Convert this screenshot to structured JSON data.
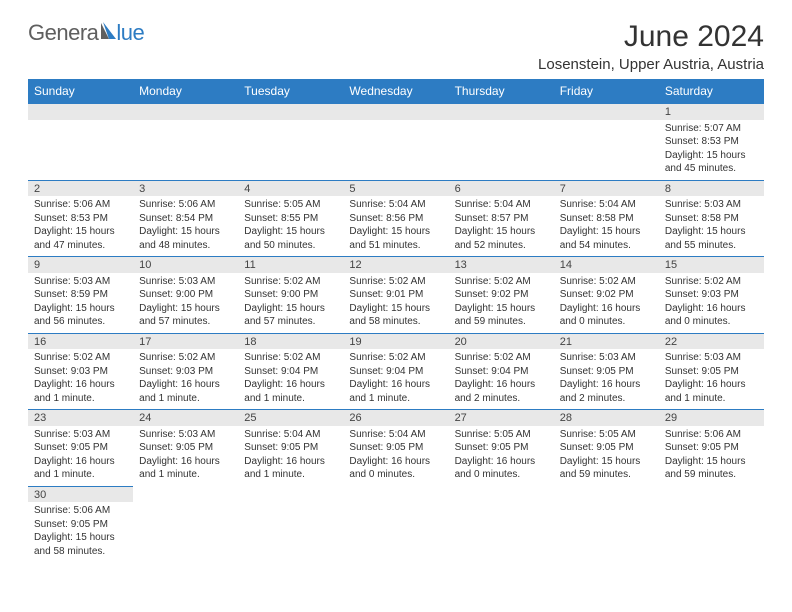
{
  "logo": {
    "text1": "Genera",
    "text2": "lue"
  },
  "title": "June 2024",
  "location": "Losenstein, Upper Austria, Austria",
  "colors": {
    "header_bg": "#2d7cc3",
    "header_fg": "#ffffff",
    "daynum_bg": "#e8e8e8",
    "text": "#333333",
    "divider": "#2d7cc3"
  },
  "day_headers": [
    "Sunday",
    "Monday",
    "Tuesday",
    "Wednesday",
    "Thursday",
    "Friday",
    "Saturday"
  ],
  "weeks": [
    [
      null,
      null,
      null,
      null,
      null,
      null,
      {
        "n": "1",
        "sunrise": "Sunrise: 5:07 AM",
        "sunset": "Sunset: 8:53 PM",
        "daylight": "Daylight: 15 hours and 45 minutes."
      }
    ],
    [
      {
        "n": "2",
        "sunrise": "Sunrise: 5:06 AM",
        "sunset": "Sunset: 8:53 PM",
        "daylight": "Daylight: 15 hours and 47 minutes."
      },
      {
        "n": "3",
        "sunrise": "Sunrise: 5:06 AM",
        "sunset": "Sunset: 8:54 PM",
        "daylight": "Daylight: 15 hours and 48 minutes."
      },
      {
        "n": "4",
        "sunrise": "Sunrise: 5:05 AM",
        "sunset": "Sunset: 8:55 PM",
        "daylight": "Daylight: 15 hours and 50 minutes."
      },
      {
        "n": "5",
        "sunrise": "Sunrise: 5:04 AM",
        "sunset": "Sunset: 8:56 PM",
        "daylight": "Daylight: 15 hours and 51 minutes."
      },
      {
        "n": "6",
        "sunrise": "Sunrise: 5:04 AM",
        "sunset": "Sunset: 8:57 PM",
        "daylight": "Daylight: 15 hours and 52 minutes."
      },
      {
        "n": "7",
        "sunrise": "Sunrise: 5:04 AM",
        "sunset": "Sunset: 8:58 PM",
        "daylight": "Daylight: 15 hours and 54 minutes."
      },
      {
        "n": "8",
        "sunrise": "Sunrise: 5:03 AM",
        "sunset": "Sunset: 8:58 PM",
        "daylight": "Daylight: 15 hours and 55 minutes."
      }
    ],
    [
      {
        "n": "9",
        "sunrise": "Sunrise: 5:03 AM",
        "sunset": "Sunset: 8:59 PM",
        "daylight": "Daylight: 15 hours and 56 minutes."
      },
      {
        "n": "10",
        "sunrise": "Sunrise: 5:03 AM",
        "sunset": "Sunset: 9:00 PM",
        "daylight": "Daylight: 15 hours and 57 minutes."
      },
      {
        "n": "11",
        "sunrise": "Sunrise: 5:02 AM",
        "sunset": "Sunset: 9:00 PM",
        "daylight": "Daylight: 15 hours and 57 minutes."
      },
      {
        "n": "12",
        "sunrise": "Sunrise: 5:02 AM",
        "sunset": "Sunset: 9:01 PM",
        "daylight": "Daylight: 15 hours and 58 minutes."
      },
      {
        "n": "13",
        "sunrise": "Sunrise: 5:02 AM",
        "sunset": "Sunset: 9:02 PM",
        "daylight": "Daylight: 15 hours and 59 minutes."
      },
      {
        "n": "14",
        "sunrise": "Sunrise: 5:02 AM",
        "sunset": "Sunset: 9:02 PM",
        "daylight": "Daylight: 16 hours and 0 minutes."
      },
      {
        "n": "15",
        "sunrise": "Sunrise: 5:02 AM",
        "sunset": "Sunset: 9:03 PM",
        "daylight": "Daylight: 16 hours and 0 minutes."
      }
    ],
    [
      {
        "n": "16",
        "sunrise": "Sunrise: 5:02 AM",
        "sunset": "Sunset: 9:03 PM",
        "daylight": "Daylight: 16 hours and 1 minute."
      },
      {
        "n": "17",
        "sunrise": "Sunrise: 5:02 AM",
        "sunset": "Sunset: 9:03 PM",
        "daylight": "Daylight: 16 hours and 1 minute."
      },
      {
        "n": "18",
        "sunrise": "Sunrise: 5:02 AM",
        "sunset": "Sunset: 9:04 PM",
        "daylight": "Daylight: 16 hours and 1 minute."
      },
      {
        "n": "19",
        "sunrise": "Sunrise: 5:02 AM",
        "sunset": "Sunset: 9:04 PM",
        "daylight": "Daylight: 16 hours and 1 minute."
      },
      {
        "n": "20",
        "sunrise": "Sunrise: 5:02 AM",
        "sunset": "Sunset: 9:04 PM",
        "daylight": "Daylight: 16 hours and 2 minutes."
      },
      {
        "n": "21",
        "sunrise": "Sunrise: 5:03 AM",
        "sunset": "Sunset: 9:05 PM",
        "daylight": "Daylight: 16 hours and 2 minutes."
      },
      {
        "n": "22",
        "sunrise": "Sunrise: 5:03 AM",
        "sunset": "Sunset: 9:05 PM",
        "daylight": "Daylight: 16 hours and 1 minute."
      }
    ],
    [
      {
        "n": "23",
        "sunrise": "Sunrise: 5:03 AM",
        "sunset": "Sunset: 9:05 PM",
        "daylight": "Daylight: 16 hours and 1 minute."
      },
      {
        "n": "24",
        "sunrise": "Sunrise: 5:03 AM",
        "sunset": "Sunset: 9:05 PM",
        "daylight": "Daylight: 16 hours and 1 minute."
      },
      {
        "n": "25",
        "sunrise": "Sunrise: 5:04 AM",
        "sunset": "Sunset: 9:05 PM",
        "daylight": "Daylight: 16 hours and 1 minute."
      },
      {
        "n": "26",
        "sunrise": "Sunrise: 5:04 AM",
        "sunset": "Sunset: 9:05 PM",
        "daylight": "Daylight: 16 hours and 0 minutes."
      },
      {
        "n": "27",
        "sunrise": "Sunrise: 5:05 AM",
        "sunset": "Sunset: 9:05 PM",
        "daylight": "Daylight: 16 hours and 0 minutes."
      },
      {
        "n": "28",
        "sunrise": "Sunrise: 5:05 AM",
        "sunset": "Sunset: 9:05 PM",
        "daylight": "Daylight: 15 hours and 59 minutes."
      },
      {
        "n": "29",
        "sunrise": "Sunrise: 5:06 AM",
        "sunset": "Sunset: 9:05 PM",
        "daylight": "Daylight: 15 hours and 59 minutes."
      }
    ],
    [
      {
        "n": "30",
        "sunrise": "Sunrise: 5:06 AM",
        "sunset": "Sunset: 9:05 PM",
        "daylight": "Daylight: 15 hours and 58 minutes."
      },
      null,
      null,
      null,
      null,
      null,
      null
    ]
  ]
}
